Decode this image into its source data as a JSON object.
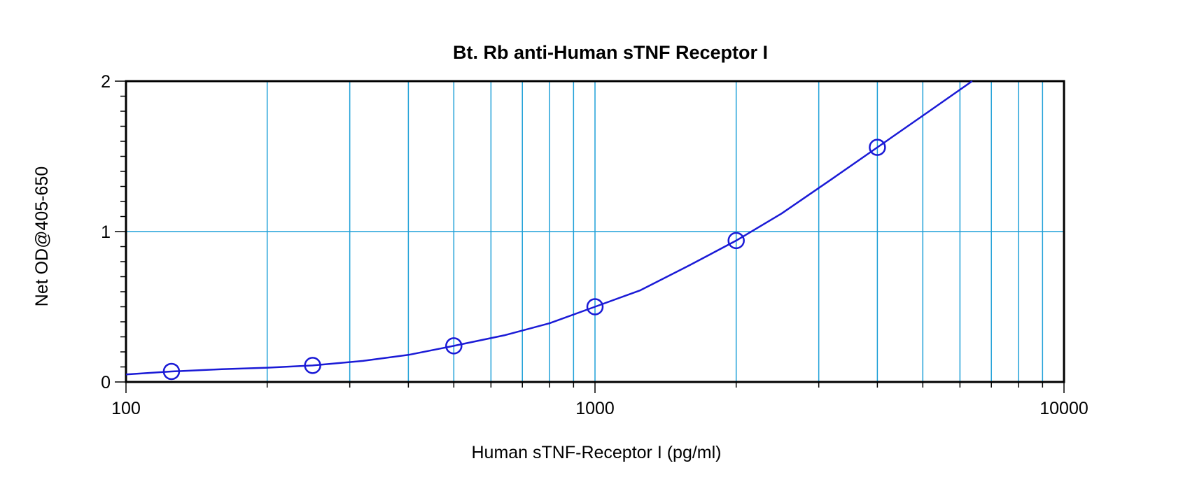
{
  "chart_data": {
    "type": "scatter",
    "title": "Bt. Rb anti-Human sTNF Receptor I",
    "xlabel": "Human sTNF-Receptor I (pg/ml)",
    "ylabel": "Net OD@405-650",
    "x_scale": "log",
    "xlim": [
      100,
      10000
    ],
    "ylim": [
      0,
      2
    ],
    "x_ticks": [
      100,
      1000,
      10000
    ],
    "x_tick_labels": [
      "100",
      "1000",
      "10000"
    ],
    "y_ticks": [
      0,
      1,
      2
    ],
    "y_tick_labels": [
      "0",
      "1",
      "2"
    ],
    "grid": true,
    "series": [
      {
        "marker": "open-circle",
        "x": [
          125,
          250,
          500,
          1000,
          2000,
          4000
        ],
        "y": [
          0.07,
          0.11,
          0.24,
          0.5,
          0.94,
          1.56
        ]
      }
    ],
    "fit_curve": {
      "x": [
        100,
        125,
        160,
        200,
        250,
        320,
        400,
        500,
        640,
        800,
        1000,
        1250,
        1600,
        2000,
        2500,
        3200,
        4000,
        5000,
        6370
      ],
      "y": [
        0.05,
        0.07,
        0.085,
        0.095,
        0.11,
        0.14,
        0.18,
        0.24,
        0.31,
        0.39,
        0.5,
        0.61,
        0.78,
        0.94,
        1.12,
        1.35,
        1.56,
        1.77,
        2.0
      ]
    },
    "colors": {
      "series": "#1a1ad6",
      "grid": "#1fa0d8",
      "axes": "#000000"
    }
  }
}
